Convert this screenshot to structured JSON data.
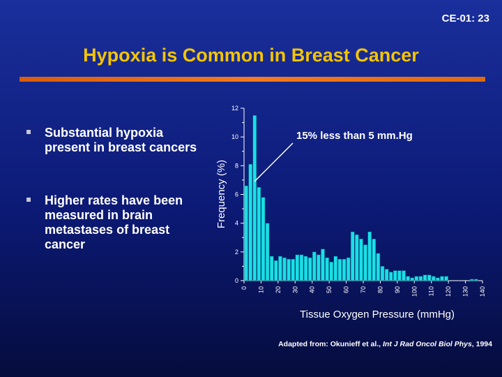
{
  "slide": {
    "id": "CE-01: 23",
    "title": "Hypoxia is Common in Breast Cancer"
  },
  "bullets": [
    "Substantial hypoxia present in breast cancers",
    "Higher rates have been measured in brain metastases of breast cancer"
  ],
  "icons": {
    "bullet": "square-bullet-icon"
  },
  "colors": {
    "title": "#f5c400",
    "rule": "#f47a1c",
    "bars": "#19dfe8"
  },
  "credit": {
    "prefix": "Adapted from: Okunieff et al.,",
    "journal": "Int J Rad Oncol Biol Phys",
    "suffix": ", 1994"
  },
  "chart_data": {
    "type": "bar",
    "xlabel": "Tissue Oxygen Pressure (mmHg)",
    "ylabel": "Frequency (%)",
    "annotation": "15% less than 5 mm.Hg",
    "xlim": [
      0,
      140
    ],
    "ylim": [
      0,
      12
    ],
    "x_bin_width": 2.5,
    "x_ticks": [
      0,
      10,
      20,
      30,
      40,
      50,
      60,
      70,
      80,
      90,
      100,
      110,
      120,
      130,
      140
    ],
    "y_ticks": [
      0,
      2,
      4,
      6,
      8,
      10,
      12
    ],
    "values": [
      6.6,
      8.1,
      11.5,
      6.5,
      5.8,
      4.0,
      1.7,
      1.4,
      1.7,
      1.6,
      1.5,
      1.5,
      1.8,
      1.8,
      1.7,
      1.6,
      2.0,
      1.8,
      2.2,
      1.6,
      1.3,
      1.7,
      1.5,
      1.5,
      1.6,
      3.4,
      3.2,
      2.9,
      2.5,
      3.4,
      2.9,
      1.9,
      1.0,
      0.8,
      0.6,
      0.7,
      0.7,
      0.7,
      0.3,
      0.2,
      0.3,
      0.3,
      0.4,
      0.4,
      0.3,
      0.2,
      0.3,
      0.3,
      0.0,
      0.0,
      0.0,
      0.0,
      0.0,
      0.1,
      0.1,
      0.0
    ]
  }
}
